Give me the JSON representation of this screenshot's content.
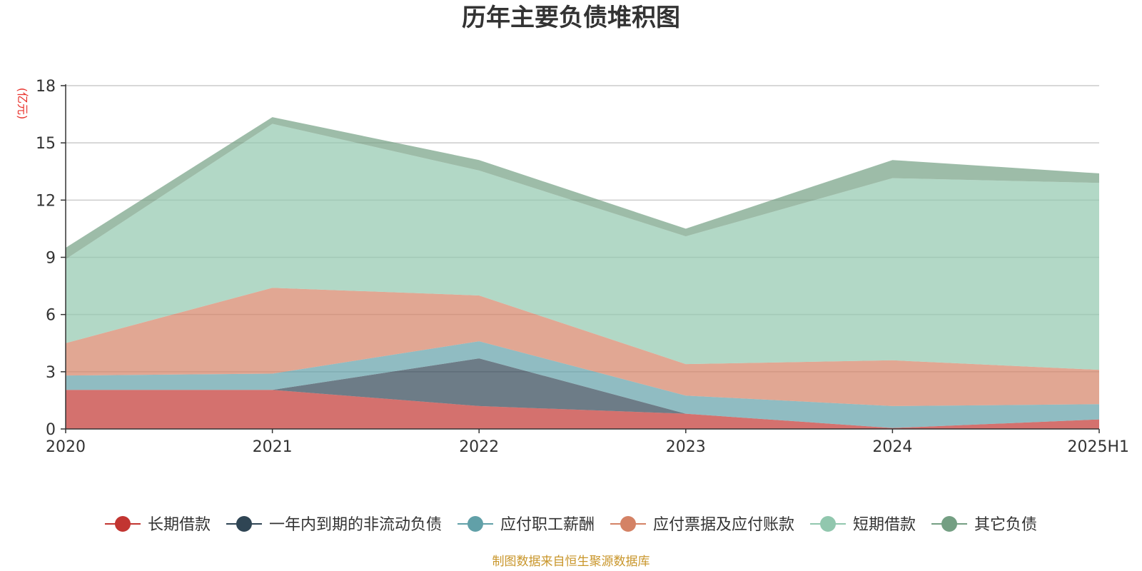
{
  "chart_data": {
    "type": "area",
    "stacked": true,
    "title": "历年主要负债堆积图",
    "ylabel": "(亿元)",
    "xlabel": "",
    "categories": [
      "2020",
      "2021",
      "2022",
      "2023",
      "2024",
      "2025H1"
    ],
    "ylim": [
      0,
      18
    ],
    "yticks": [
      0,
      3,
      6,
      9,
      12,
      15,
      18
    ],
    "grid": true,
    "legend_position": "bottom",
    "series": [
      {
        "name": "长期借款",
        "color": "#c23531",
        "values": [
          2.05,
          2.05,
          1.2,
          0.8,
          0.05,
          0.5
        ]
      },
      {
        "name": "一年内到期的非流动负债",
        "color": "#2f4554",
        "values": [
          0.0,
          0.0,
          2.5,
          0.0,
          0.0,
          0.0
        ]
      },
      {
        "name": "应付职工薪酬",
        "color": "#61a0a8",
        "values": [
          0.75,
          0.85,
          0.9,
          0.95,
          1.15,
          0.8
        ]
      },
      {
        "name": "应付票据及应付账款",
        "color": "#d48265",
        "values": [
          1.7,
          4.5,
          2.4,
          1.65,
          2.4,
          1.8
        ]
      },
      {
        "name": "短期借款",
        "color": "#91c7ae",
        "values": [
          4.4,
          8.6,
          6.55,
          6.7,
          9.55,
          9.8
        ]
      },
      {
        "name": "其它负债",
        "color": "#749f83",
        "values": [
          0.6,
          0.35,
          0.55,
          0.4,
          0.95,
          0.5
        ]
      }
    ],
    "source": "制图数据来自恒生聚源数据库"
  }
}
